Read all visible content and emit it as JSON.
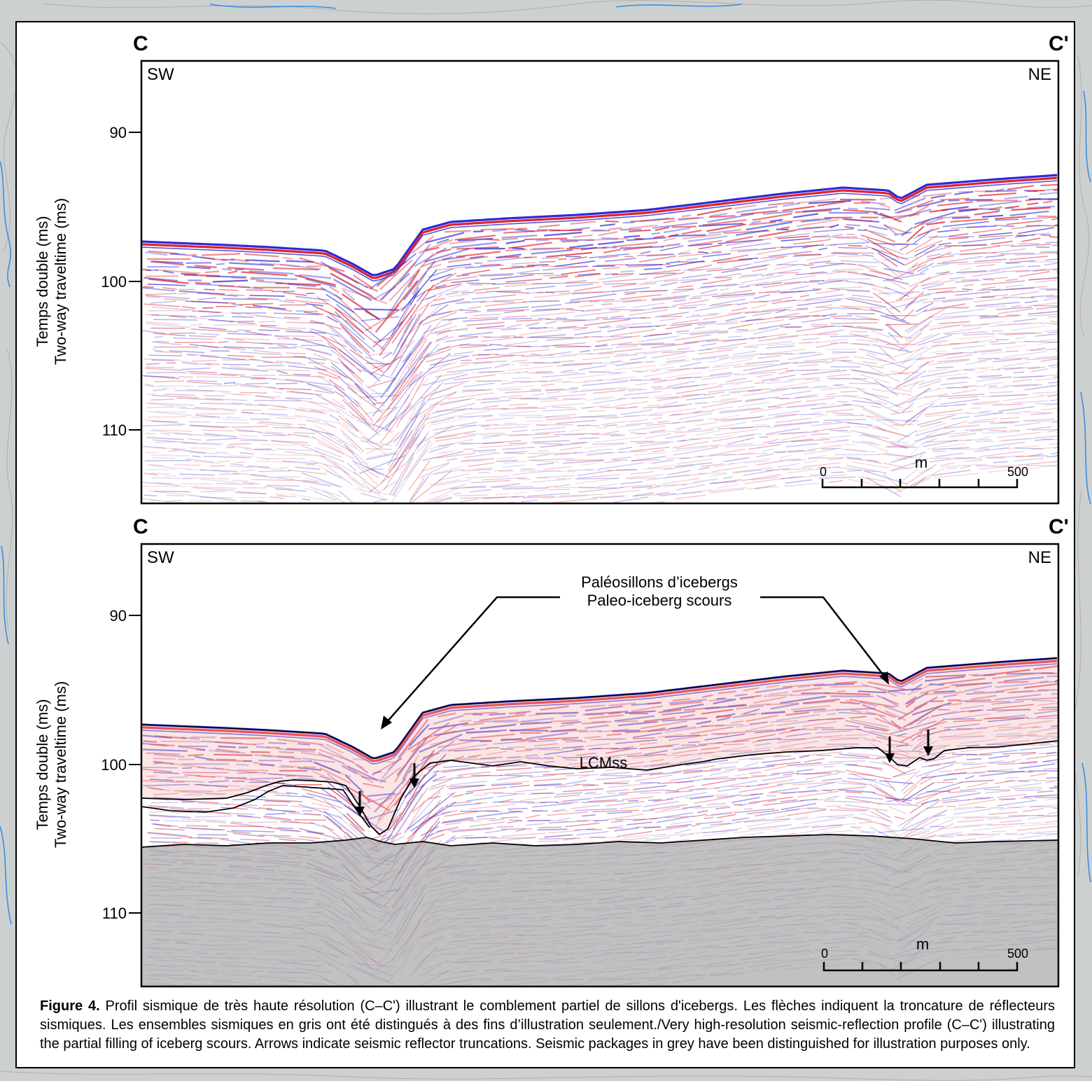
{
  "sections": [
    {
      "id": "uninterpreted",
      "corner_left": "C",
      "corner_right": "C'",
      "dir_left": "SW",
      "dir_right": "NE",
      "y_ticks": [
        "90",
        "100",
        "110"
      ],
      "y_label_fr": "Temps double (ms)",
      "y_label_en": "Two-way traveltime (ms)",
      "scale": {
        "start": "0",
        "end": "500",
        "unit": "m"
      }
    },
    {
      "id": "interpreted",
      "corner_left": "C",
      "corner_right": "C'",
      "dir_left": "SW",
      "dir_right": "NE",
      "y_ticks": [
        "90",
        "100",
        "110"
      ],
      "y_label_fr": "Temps double (ms)",
      "y_label_en": "Two-way traveltime (ms)",
      "scale": {
        "start": "0",
        "end": "500",
        "unit": "m"
      },
      "annotation_fr": "Paléosillons d’icebergs",
      "annotation_en": "Paleo-iceberg scours",
      "unit_label": "LCMss"
    }
  ],
  "caption": {
    "lead": "Figure 4.",
    "text": " Profil sismique de très haute résolution (C–C') illustrant le comblement partiel de sillons d'icebergs. Les flèches indiquent la troncature de réflecteurs sismiques. Les ensembles sismiques en gris ont été distingués à des fins d’illustration seulement./Very high-resolution seismic-reflection profile (C–C') illustrating the partial filling of iceberg scours. Arrows indicate seismic reflector truncations. Seismic packages in grey have been distinguished for illustration purposes only."
  },
  "colors": {
    "positive": "#e0202a",
    "negative": "#2a2ad8",
    "grey_package": "#a9a9ab",
    "map_water": "#3a8fe0"
  }
}
